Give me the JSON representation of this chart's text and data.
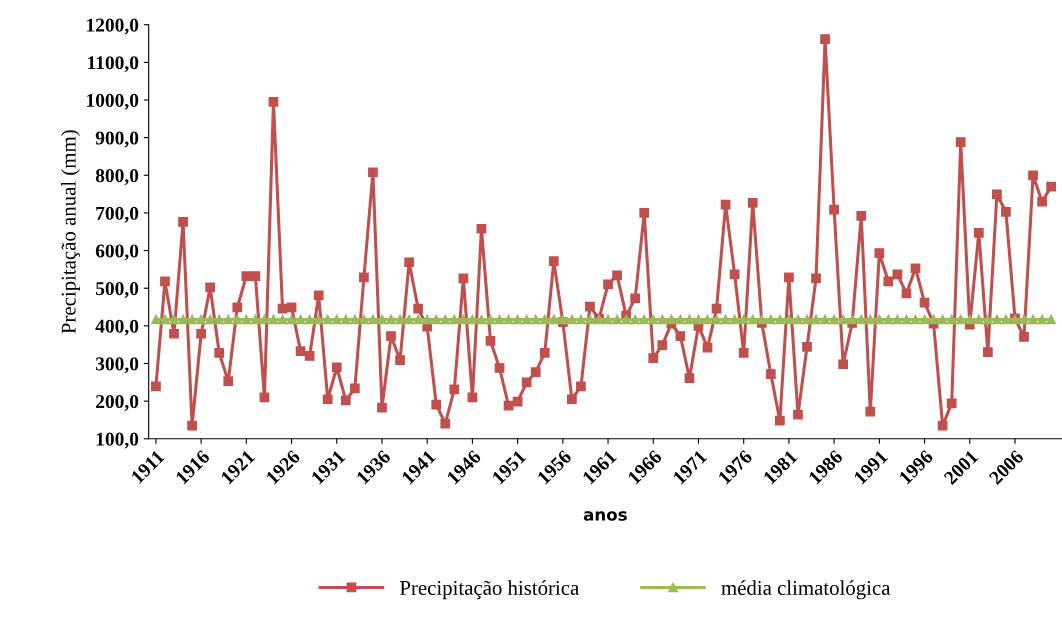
{
  "chart_data": {
    "type": "line",
    "xlabel": "anos",
    "ylabel": "Precipitação anual (mm)",
    "x": [
      1911,
      1912,
      1913,
      1914,
      1915,
      1916,
      1917,
      1918,
      1919,
      1920,
      1921,
      1922,
      1923,
      1924,
      1925,
      1926,
      1927,
      1928,
      1929,
      1930,
      1931,
      1932,
      1933,
      1934,
      1935,
      1936,
      1937,
      1938,
      1939,
      1940,
      1941,
      1942,
      1943,
      1944,
      1945,
      1946,
      1947,
      1948,
      1949,
      1950,
      1951,
      1952,
      1953,
      1954,
      1955,
      1956,
      1957,
      1958,
      1959,
      1960,
      1961,
      1962,
      1963,
      1964,
      1965,
      1966,
      1967,
      1968,
      1969,
      1970,
      1971,
      1972,
      1973,
      1974,
      1975,
      1976,
      1977,
      1978,
      1979,
      1980,
      1981,
      1982,
      1983,
      1984,
      1985,
      1986,
      1987,
      1988,
      1989,
      1990,
      1991,
      1992,
      1993,
      1994,
      1995,
      1996,
      1997,
      1998,
      1999,
      2000,
      2001,
      2002,
      2003,
      2004,
      2005,
      2006,
      2007,
      2008,
      2009,
      2010
    ],
    "series": [
      {
        "name": "Precipitação histórica",
        "color": "#c0504d",
        "marker": "square",
        "values": [
          239,
          518,
          379,
          676,
          135,
          379,
          502,
          328,
          253,
          449,
          532,
          532,
          210,
          995,
          446,
          449,
          333,
          320,
          481,
          205,
          290,
          202,
          234,
          529,
          808,
          183,
          373,
          309,
          569,
          446,
          398,
          191,
          140,
          231,
          526,
          210,
          658,
          360,
          288,
          188,
          199,
          250,
          277,
          328,
          572,
          410,
          205,
          239,
          451,
          419,
          510,
          534,
          427,
          473,
          700,
          314,
          349,
          406,
          373,
          261,
          400,
          342,
          446,
          722,
          537,
          328,
          727,
          408,
          272,
          148,
          529,
          164,
          344,
          526,
          1162,
          709,
          298,
          408,
          692,
          172,
          593,
          518,
          537,
          486,
          553,
          462,
          406,
          135,
          194,
          888,
          403,
          647,
          330,
          749,
          703,
          420,
          371,
          800,
          730,
          770
        ]
      },
      {
        "name": "média climatológica",
        "color": "#9bbb59",
        "marker": "triangle",
        "values": [
          417,
          417,
          417,
          417,
          417,
          417,
          417,
          417,
          417,
          417,
          417,
          417,
          417,
          417,
          417,
          417,
          417,
          417,
          417,
          417,
          417,
          417,
          417,
          417,
          417,
          417,
          417,
          417,
          417,
          417,
          417,
          417,
          417,
          417,
          417,
          417,
          417,
          417,
          417,
          417,
          417,
          417,
          417,
          417,
          417,
          417,
          417,
          417,
          417,
          417,
          417,
          417,
          417,
          417,
          417,
          417,
          417,
          417,
          417,
          417,
          417,
          417,
          417,
          417,
          417,
          417,
          417,
          417,
          417,
          417,
          417,
          417,
          417,
          417,
          417,
          417,
          417,
          417,
          417,
          417,
          417,
          417,
          417,
          417,
          417,
          417,
          417,
          417,
          417,
          417,
          417,
          417,
          417,
          417,
          417,
          417,
          417,
          417,
          417,
          417
        ]
      }
    ],
    "xlim": [
      1910.2,
      2011.2
    ],
    "xticks": [
      1911,
      1916,
      1921,
      1926,
      1931,
      1936,
      1941,
      1946,
      1951,
      1956,
      1961,
      1966,
      1971,
      1976,
      1981,
      1986,
      1991,
      1996,
      2001,
      2006
    ],
    "ylim": [
      100,
      1200
    ],
    "yticks": [
      {
        "value": 100,
        "label": "100,0"
      },
      {
        "value": 200,
        "label": "200,0"
      },
      {
        "value": 300,
        "label": "300,0"
      },
      {
        "value": 400,
        "label": "400,0"
      },
      {
        "value": 500,
        "label": "500,0"
      },
      {
        "value": 600,
        "label": "600,0"
      },
      {
        "value": 700,
        "label": "700,0"
      },
      {
        "value": 800,
        "label": "800,0"
      },
      {
        "value": 900,
        "label": "900,0"
      },
      {
        "value": 1000,
        "label": "1000,0"
      },
      {
        "value": 1100,
        "label": "1100,0"
      },
      {
        "value": 1200,
        "label": "1200,0"
      }
    ],
    "grid": false,
    "legend": "bottom",
    "line_style": "solid"
  }
}
